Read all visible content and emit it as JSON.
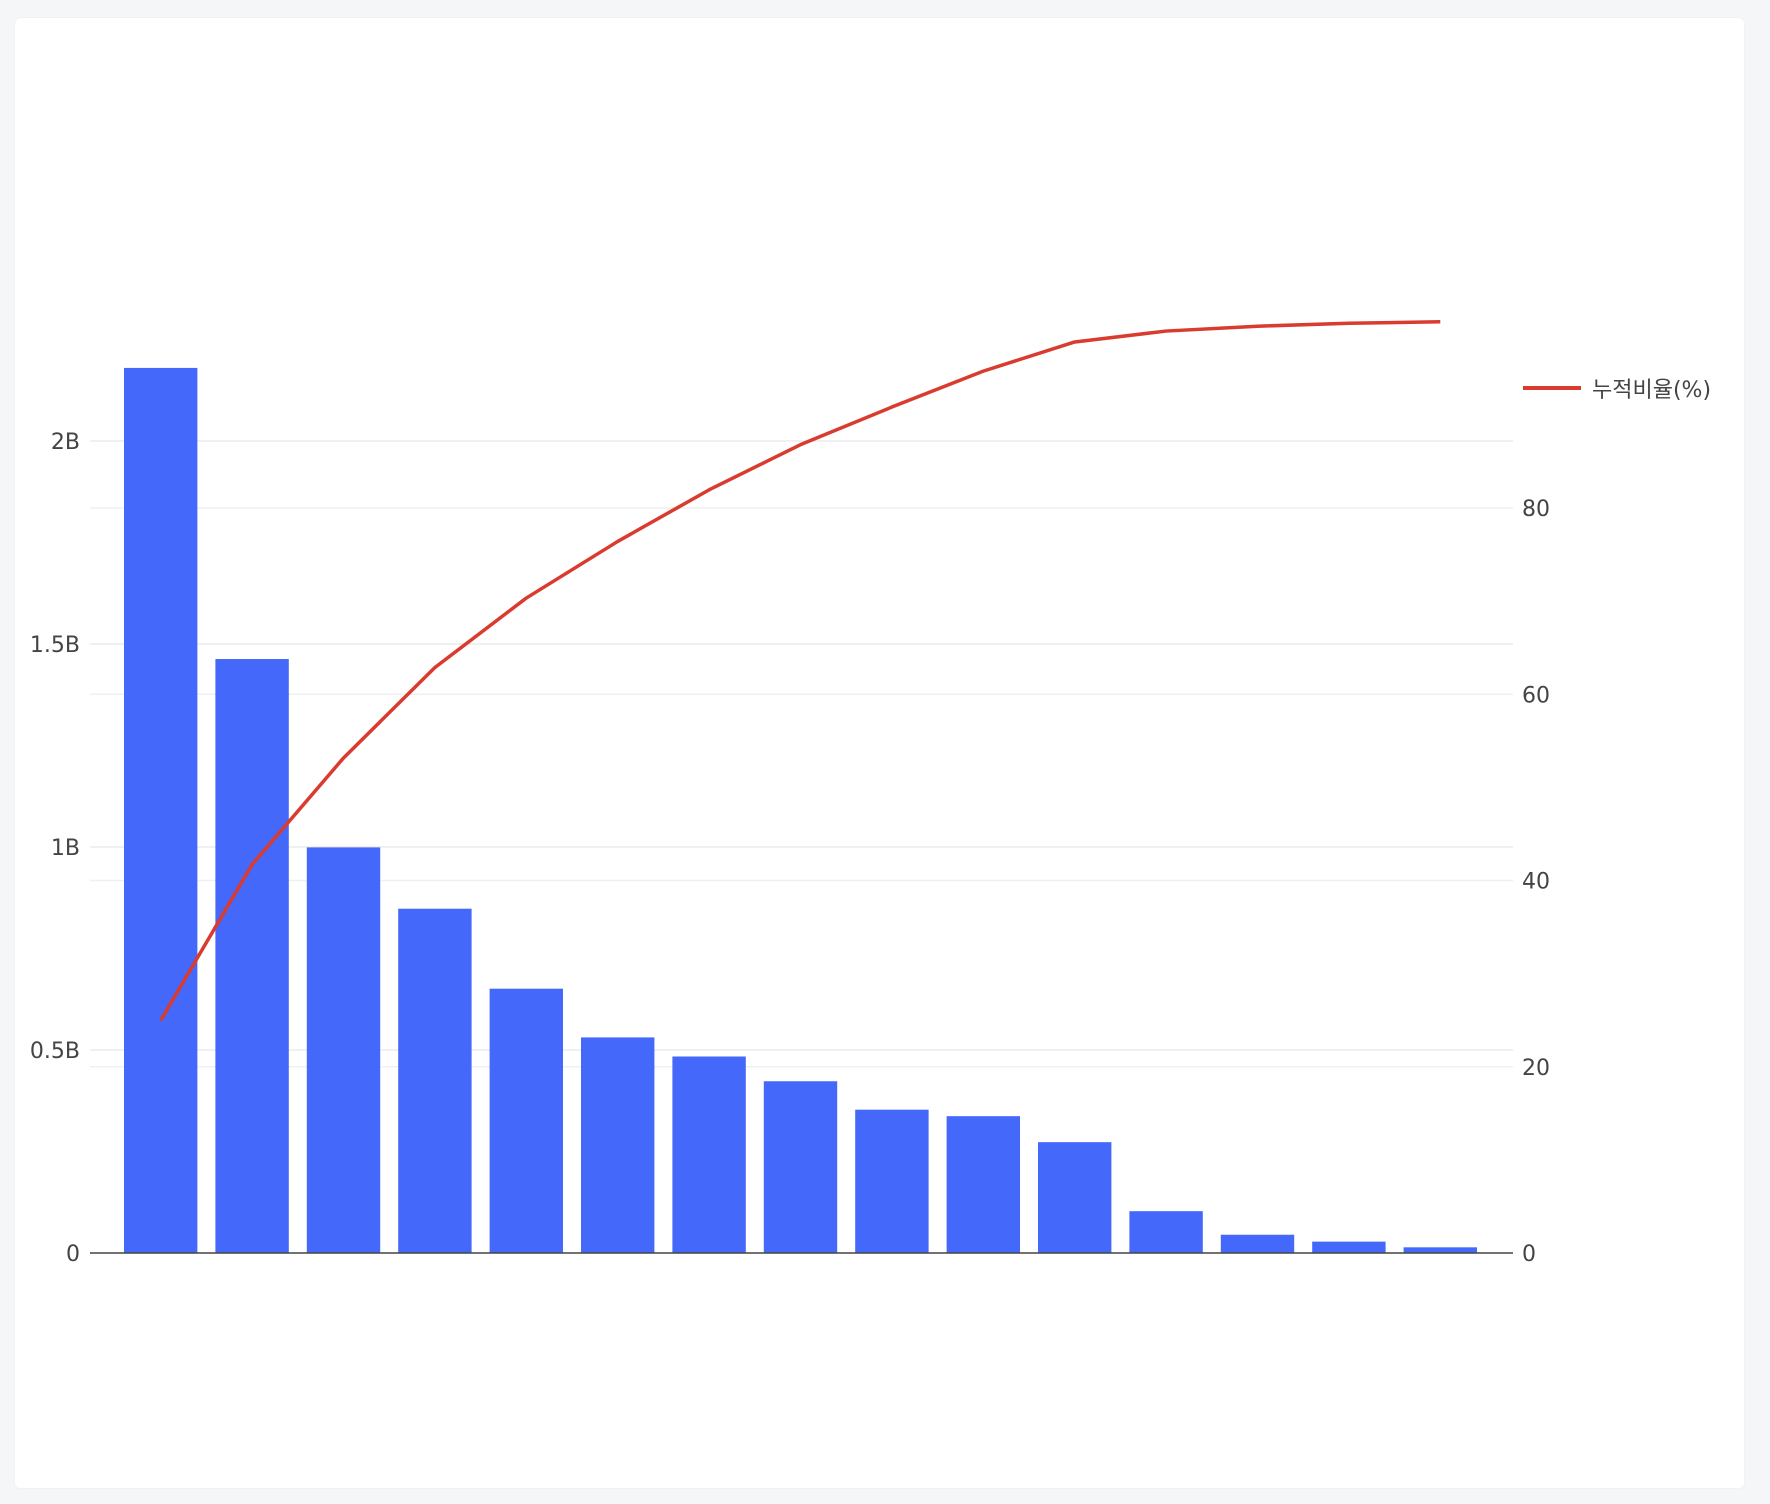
{
  "chart_data": {
    "type": "bar+line",
    "title": "",
    "xlabel": "",
    "categories": [
      "",
      "",
      "",
      "",
      "",
      "",
      "",
      "",
      "",
      "",
      "",
      "",
      "",
      "",
      ""
    ],
    "series": [
      {
        "type": "bar",
        "axis": "left",
        "color": "#4468fa",
        "values": [
          2180000000,
          1463000000,
          999000000,
          848000000,
          651000000,
          531000000,
          484000000,
          423000000,
          353000000,
          337000000,
          273000000,
          103000000,
          45000000,
          28000000,
          14000000
        ]
      },
      {
        "type": "line",
        "axis": "right",
        "name": "누적비율(%)",
        "color": "#d93b2f",
        "values": [
          24.97,
          41.72,
          53.16,
          62.87,
          70.33,
          76.41,
          81.95,
          86.8,
          90.84,
          94.7,
          97.83,
          99.0,
          99.52,
          99.84,
          100
        ]
      }
    ],
    "y_left": {
      "range": [
        0,
        2300000000
      ],
      "ticks": [
        0,
        500000000,
        1000000000,
        1500000000,
        2000000000
      ],
      "tick_labels": [
        "0",
        "0.5B",
        "1B",
        "1.5B",
        "2B"
      ]
    },
    "y_right": {
      "range": [
        0,
        100
      ],
      "ticks": [
        0,
        20,
        40,
        60,
        80
      ],
      "tick_labels": [
        "0",
        "20",
        "40",
        "60",
        "80"
      ]
    },
    "grid": true,
    "legend": {
      "placement": "right",
      "entries": [
        "누적비율(%)"
      ]
    }
  }
}
